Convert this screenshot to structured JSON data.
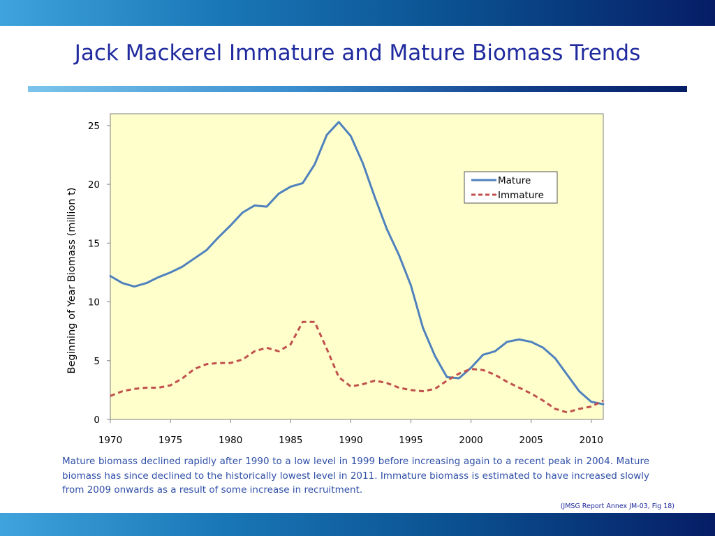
{
  "slide": {
    "title": "Jack Mackerel Immature and Mature Biomass Trends",
    "caption": "Mature biomass declined rapidly after 1990 to a low level in 1999 before increasing again to a recent peak in 2004. Mature biomass has since declined to the historically lowest level in 2011.  Immature biomass is estimated to have increased slowly from 2009 onwards as a result of some increase in recruitment.",
    "source": "(JMSG Report Annex JM-03, Fig 18)",
    "colors": {
      "title": "#1f2a9e",
      "caption": "#2f4fa8",
      "plot_background": "#ffffcc",
      "mature": "#4f81bd",
      "immature": "#c0504d"
    }
  },
  "chart_data": {
    "type": "line",
    "title": "",
    "xlabel": "",
    "ylabel": "Beginning of Year Biomass (million t)",
    "xlim": [
      1970,
      2011
    ],
    "ylim": [
      0,
      26
    ],
    "xticks": [
      1970,
      1975,
      1980,
      1985,
      1990,
      1995,
      2000,
      2005,
      2010
    ],
    "yticks": [
      0,
      5,
      10,
      15,
      20,
      25
    ],
    "grid": false,
    "legend_position": "top-right",
    "x": [
      1970,
      1971,
      1972,
      1973,
      1974,
      1975,
      1976,
      1977,
      1978,
      1979,
      1980,
      1981,
      1982,
      1983,
      1984,
      1985,
      1986,
      1987,
      1988,
      1989,
      1990,
      1991,
      1992,
      1993,
      1994,
      1995,
      1996,
      1997,
      1998,
      1999,
      2000,
      2001,
      2002,
      2003,
      2004,
      2005,
      2006,
      2007,
      2008,
      2009,
      2010,
      2011
    ],
    "series": [
      {
        "name": "Mature",
        "style": "solid",
        "values": [
          12.2,
          11.6,
          11.3,
          11.6,
          12.1,
          12.5,
          13.0,
          13.7,
          14.4,
          15.5,
          16.5,
          17.6,
          18.2,
          18.1,
          19.2,
          19.8,
          20.1,
          21.7,
          24.2,
          25.3,
          24.1,
          21.8,
          18.9,
          16.2,
          14.0,
          11.4,
          7.8,
          5.4,
          3.6,
          3.5,
          4.4,
          5.5,
          5.8,
          6.6,
          6.8,
          6.6,
          6.1,
          5.2,
          3.8,
          2.4,
          1.5,
          1.3
        ]
      },
      {
        "name": "Immature",
        "style": "dashed",
        "values": [
          2.0,
          2.4,
          2.6,
          2.7,
          2.7,
          2.9,
          3.5,
          4.3,
          4.7,
          4.8,
          4.8,
          5.1,
          5.8,
          6.1,
          5.8,
          6.4,
          8.3,
          8.3,
          6.0,
          3.6,
          2.8,
          3.0,
          3.3,
          3.1,
          2.7,
          2.5,
          2.4,
          2.6,
          3.3,
          3.9,
          4.3,
          4.2,
          3.8,
          3.2,
          2.7,
          2.2,
          1.6,
          0.9,
          0.6,
          0.9,
          1.1,
          1.6
        ]
      }
    ]
  }
}
